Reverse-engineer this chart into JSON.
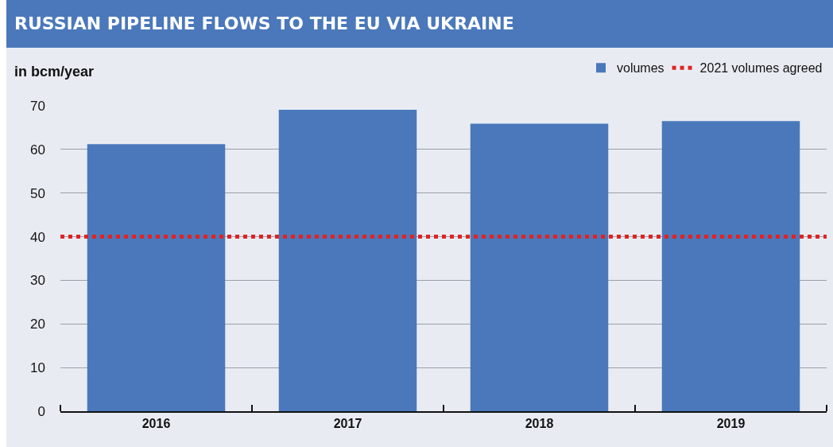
{
  "chart_data": {
    "type": "bar",
    "title": "RUSSIAN PIPELINE FLOWS TO THE EU VIA UKRAINE",
    "ylabel": "in bcm/year",
    "categories": [
      "2016",
      "2017",
      "2018",
      "2019"
    ],
    "series": [
      {
        "name": "volumes",
        "color": "#4a78bb",
        "values": [
          61.2,
          69.1,
          65.9,
          66.5
        ]
      }
    ],
    "ref_lines": [
      {
        "axis": "y",
        "value": 40,
        "label": "2021 volumes agreed",
        "color": "#e02424",
        "line_style": "dotted"
      }
    ],
    "ylim": [
      0,
      70
    ],
    "yticks": [
      0,
      10,
      20,
      30,
      40,
      50,
      60,
      70
    ],
    "grid": "y",
    "legend": "top right"
  }
}
